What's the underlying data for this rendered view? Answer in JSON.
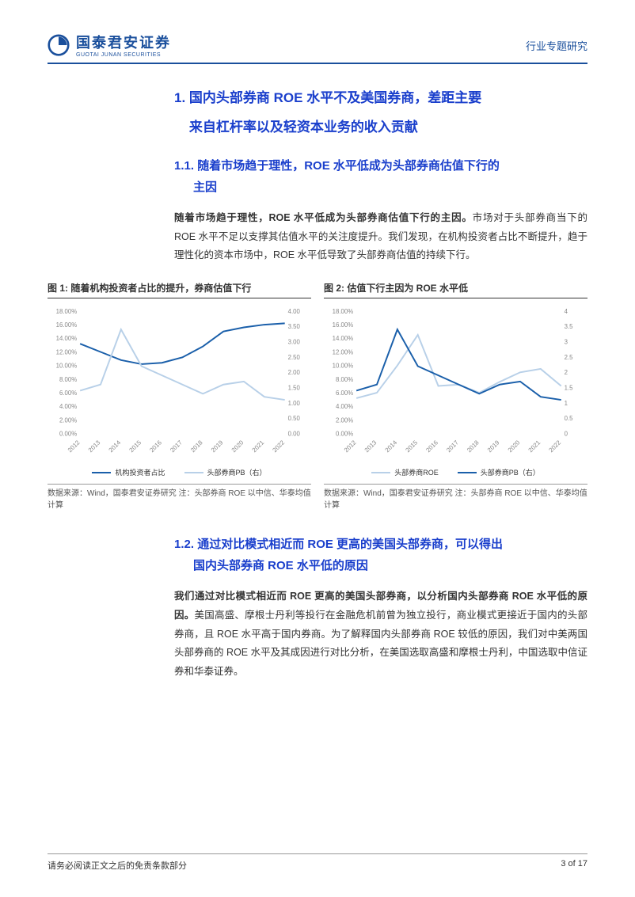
{
  "header": {
    "logo_cn": "国泰君安证券",
    "logo_en": "GUOTAI JUNAN SECURITIES",
    "doc_type": "行业专题研究"
  },
  "section1": {
    "number": "1.",
    "title_l1": "国内头部券商 ROE 水平不及美国券商，差距主要",
    "title_l2": "来自杠杆率以及轻资本业务的收入贡献"
  },
  "section11": {
    "number": "1.1.",
    "title_l1": "随着市场趋于理性，ROE 水平低成为头部券商估值下行的",
    "title_l2": "主因"
  },
  "para11": {
    "bold": "随着市场趋于理性，ROE 水平低成为头部券商估值下行的主因。",
    "rest": "市场对于头部券商当下的 ROE 水平不足以支撑其估值水平的关注度提升。我们发现，在机构投资者占比不断提升，趋于理性化的资本市场中，ROE 水平低导致了头部券商估值的持续下行。"
  },
  "chart1": {
    "title": "图 1: 随着机构投资者占比的提升，券商估值下行",
    "type": "line",
    "x_labels": [
      "2012",
      "2013",
      "2014",
      "2015",
      "2016",
      "2017",
      "2018",
      "2019",
      "2020",
      "2021",
      "2022"
    ],
    "left_axis": {
      "min": 0,
      "max": 18,
      "ticks": [
        "0.00%",
        "2.00%",
        "4.00%",
        "6.00%",
        "8.00%",
        "10.00%",
        "12.00%",
        "14.00%",
        "16.00%",
        "18.00%"
      ]
    },
    "right_axis": {
      "min": 0,
      "max": 4,
      "ticks": [
        "0.00",
        "0.50",
        "1.00",
        "1.50",
        "2.00",
        "2.50",
        "3.00",
        "3.50",
        "4.00"
      ]
    },
    "series1": {
      "name": "机构投资者占比",
      "color": "#1a5faa",
      "values": [
        13.2,
        12.0,
        10.8,
        10.2,
        10.4,
        11.2,
        12.8,
        15.0,
        15.6,
        16.0,
        16.2
      ]
    },
    "series2": {
      "name": "头部券商PB（右）",
      "color": "#b8d0e8",
      "values": [
        1.4,
        1.6,
        3.4,
        2.2,
        1.9,
        1.6,
        1.3,
        1.6,
        1.7,
        1.2,
        1.1
      ]
    },
    "source": "数据来源：Wind，国泰君安证券研究 注：头部券商 ROE 以中信、华泰均值计算",
    "background": "#ffffff",
    "grid_color": "none"
  },
  "chart2": {
    "title": "图 2: 估值下行主因为 ROE 水平低",
    "type": "line",
    "x_labels": [
      "2012",
      "2013",
      "2014",
      "2015",
      "2016",
      "2017",
      "2018",
      "2019",
      "2020",
      "2021",
      "2022"
    ],
    "left_axis": {
      "min": 0,
      "max": 18,
      "ticks": [
        "0.00%",
        "2.00%",
        "4.00%",
        "6.00%",
        "8.00%",
        "10.00%",
        "12.00%",
        "14.00%",
        "16.00%",
        "18.00%"
      ]
    },
    "right_axis": {
      "min": 0,
      "max": 4,
      "ticks": [
        "0",
        "0.5",
        "1",
        "1.5",
        "2",
        "2.5",
        "3",
        "3.5",
        "4"
      ]
    },
    "series1": {
      "name": "头部券商ROE",
      "color": "#b8d0e8",
      "values": [
        5.2,
        6.0,
        10.0,
        14.5,
        7.0,
        7.2,
        6.0,
        7.6,
        9.0,
        9.5,
        7.0
      ]
    },
    "series2": {
      "name": "头部券商PB（右）",
      "color": "#1a5faa",
      "values": [
        1.4,
        1.6,
        3.4,
        2.2,
        1.9,
        1.6,
        1.3,
        1.6,
        1.7,
        1.2,
        1.1
      ]
    },
    "source": "数据来源：Wind，国泰君安证券研究 注：头部券商 ROE 以中信、华泰均值计算",
    "background": "#ffffff",
    "grid_color": "none"
  },
  "section12": {
    "number": "1.2.",
    "title_l1": "通过对比模式相近而 ROE 更高的美国头部券商，可以得出",
    "title_l2": "国内头部券商 ROE 水平低的原因"
  },
  "para12": {
    "bold": "我们通过对比模式相近而 ROE 更高的美国头部券商，以分析国内头部券商 ROE 水平低的原因。",
    "rest": "美国高盛、摩根士丹利等投行在金融危机前曾为独立投行，商业模式更接近于国内的头部券商，且 ROE 水平高于国内券商。为了解释国内头部券商 ROE 较低的原因，我们对中美两国头部券商的 ROE 水平及其成因进行对比分析，在美国选取高盛和摩根士丹利，中国选取中信证券和华泰证券。"
  },
  "footer": {
    "disclaimer": "请务必阅读正文之后的免责条款部分",
    "page": "3 of 17"
  },
  "colors": {
    "brand_blue": "#1a4f9c",
    "heading_blue": "#1a3fcc",
    "series_dark": "#1a5faa",
    "series_light": "#b8d0e8"
  }
}
